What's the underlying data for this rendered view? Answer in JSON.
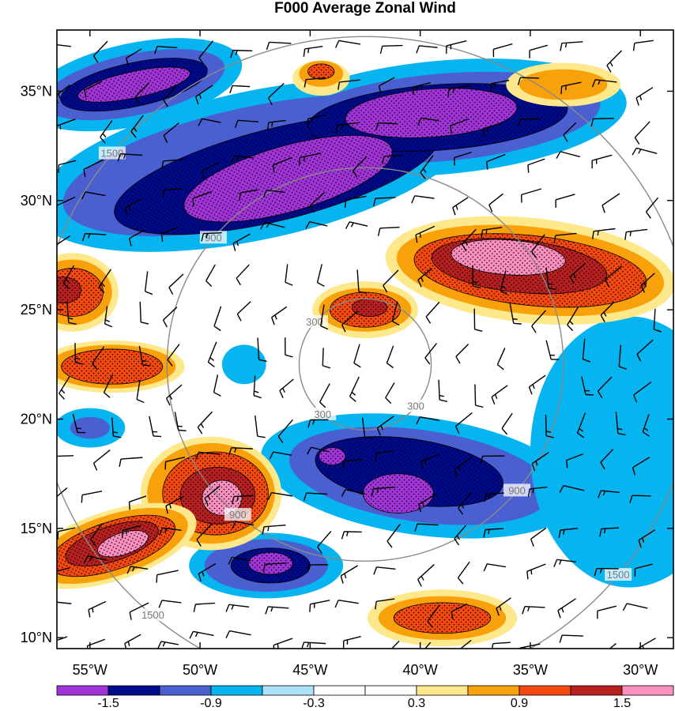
{
  "chart_data": {
    "type": "heatmap",
    "title": "F000 Average Zonal Wind",
    "x_ticks": [
      {
        "value": -55,
        "label": "55°W"
      },
      {
        "value": -50,
        "label": "50°W"
      },
      {
        "value": -45,
        "label": "45°W"
      },
      {
        "value": -40,
        "label": "40°W"
      },
      {
        "value": -35,
        "label": "35°W"
      },
      {
        "value": -30,
        "label": "30°W"
      }
    ],
    "y_ticks": [
      {
        "value": 10,
        "label": "10°N"
      },
      {
        "value": 15,
        "label": "15°N"
      },
      {
        "value": 20,
        "label": "20°N"
      },
      {
        "value": 25,
        "label": "25°N"
      },
      {
        "value": 30,
        "label": "30°N"
      },
      {
        "value": 35,
        "label": "35°N"
      }
    ],
    "xlim": [
      -56.5,
      -28.5
    ],
    "ylim": [
      9.5,
      37.8
    ],
    "colorbar": {
      "levels": [
        "-1.5",
        "-0.9",
        "-0.3",
        "0.3",
        "0.9",
        "1.5"
      ],
      "colors": [
        "#a034d8",
        "#000a8c",
        "#4a5fd0",
        "#06b4f0",
        "#aee2f8",
        "#ffffff",
        "#ffffff",
        "#fde98c",
        "#f8a10a",
        "#f64910",
        "#b82020",
        "#fb8fbf"
      ]
    },
    "range_circles": [
      {
        "radius_label": "300",
        "radius_deg": 3.0
      },
      {
        "radius_label": "900",
        "radius_deg": 9.0
      },
      {
        "radius_label": "1500",
        "radius_deg": 15.0
      }
    ],
    "center": {
      "lon": -42.5,
      "lat": 22.5
    },
    "regions": [
      {
        "level": -1,
        "cx": -47.5,
        "cy": 31.6,
        "rx": 10.2,
        "ry": 3.4,
        "rot": 12
      },
      {
        "level": -1,
        "cx": -39.0,
        "cy": 33.8,
        "rx": 8.4,
        "ry": 2.6,
        "rot": 5
      },
      {
        "level": -1,
        "cx": -53.0,
        "cy": 35.3,
        "rx": 5.0,
        "ry": 1.9,
        "rot": 12
      },
      {
        "level": -2,
        "cx": -47.5,
        "cy": 31.6,
        "rx": 8.9,
        "ry": 2.7,
        "rot": 12
      },
      {
        "level": -2,
        "cx": -39.0,
        "cy": 33.8,
        "rx": 7.2,
        "ry": 2.0,
        "rot": 5
      },
      {
        "level": -2,
        "cx": -53.0,
        "cy": 35.3,
        "rx": 4.2,
        "ry": 1.4,
        "rot": 12
      },
      {
        "level": -3,
        "cx": -46.5,
        "cy": 31.2,
        "rx": 7.6,
        "ry": 2.1,
        "rot": 14
      },
      {
        "level": -3,
        "cx": -39.2,
        "cy": 33.8,
        "rx": 5.9,
        "ry": 1.5,
        "rot": 4
      },
      {
        "level": -3,
        "cx": -53.0,
        "cy": 35.3,
        "rx": 3.4,
        "ry": 1.0,
        "rot": 12
      },
      {
        "level": -4,
        "cx": -46.0,
        "cy": 31.0,
        "rx": 4.9,
        "ry": 1.5,
        "rot": 16
      },
      {
        "level": -4,
        "cx": -39.5,
        "cy": 34.0,
        "rx": 3.9,
        "ry": 1.1,
        "rot": 4
      },
      {
        "level": -4,
        "cx": -53.0,
        "cy": 35.3,
        "rx": 2.6,
        "ry": 0.6,
        "rot": 12
      },
      {
        "level": -1,
        "cx": -40.0,
        "cy": 17.4,
        "rx": 7.3,
        "ry": 2.7,
        "rot": -8
      },
      {
        "level": -2,
        "cx": -40.0,
        "cy": 17.4,
        "rx": 6.0,
        "ry": 2.1,
        "rot": -8
      },
      {
        "level": -3,
        "cx": -40.5,
        "cy": 17.6,
        "rx": 4.3,
        "ry": 1.5,
        "rot": -8
      },
      {
        "level": -4,
        "cx": -41.0,
        "cy": 16.6,
        "rx": 1.6,
        "ry": 0.9,
        "rot": 0
      },
      {
        "level": -4,
        "cx": -44.0,
        "cy": 18.3,
        "rx": 0.6,
        "ry": 0.4,
        "rot": 0
      },
      {
        "level": -1,
        "cx": -47.0,
        "cy": 13.3,
        "rx": 3.5,
        "ry": 1.5,
        "rot": 0
      },
      {
        "level": -2,
        "cx": -47.0,
        "cy": 13.3,
        "rx": 2.8,
        "ry": 1.2,
        "rot": 0
      },
      {
        "level": -3,
        "cx": -46.8,
        "cy": 13.3,
        "rx": 1.8,
        "ry": 0.8,
        "rot": 0
      },
      {
        "level": -4,
        "cx": -46.8,
        "cy": 13.4,
        "rx": 1.0,
        "ry": 0.5,
        "rot": 0
      },
      {
        "level": -1,
        "cx": -30.5,
        "cy": 18.5,
        "rx": 4.5,
        "ry": 6.2,
        "rot": 0
      },
      {
        "level": -1,
        "cx": -48.0,
        "cy": 22.5,
        "rx": 1.0,
        "ry": 0.9,
        "rot": 0
      },
      {
        "level": -1,
        "cx": -55.0,
        "cy": 19.6,
        "rx": 1.6,
        "ry": 0.9,
        "rot": 0
      },
      {
        "level": -2,
        "cx": -55.0,
        "cy": 19.6,
        "rx": 0.9,
        "ry": 0.5,
        "rot": 0
      },
      {
        "level": 1,
        "cx": -35.0,
        "cy": 26.8,
        "rx": 6.6,
        "ry": 2.4,
        "rot": -6
      },
      {
        "level": 2,
        "cx": -35.0,
        "cy": 26.8,
        "rx": 6.1,
        "ry": 2.0,
        "rot": -6
      },
      {
        "level": 3,
        "cx": -35.0,
        "cy": 26.8,
        "rx": 5.3,
        "ry": 1.6,
        "rot": -6
      },
      {
        "level": 4,
        "cx": -35.5,
        "cy": 27.0,
        "rx": 4.0,
        "ry": 1.2,
        "rot": -6
      },
      {
        "level": 5,
        "cx": -36.0,
        "cy": 27.4,
        "rx": 2.6,
        "ry": 0.8,
        "rot": -4
      },
      {
        "level": 1,
        "cx": -42.5,
        "cy": 25.0,
        "rx": 2.4,
        "ry": 1.3,
        "rot": 0
      },
      {
        "level": 2,
        "cx": -42.5,
        "cy": 25.0,
        "rx": 2.1,
        "ry": 1.0,
        "rot": 0
      },
      {
        "level": 3,
        "cx": -42.5,
        "cy": 25.0,
        "rx": 1.6,
        "ry": 0.8,
        "rot": 0
      },
      {
        "level": 4,
        "cx": -42.3,
        "cy": 25.1,
        "rx": 0.8,
        "ry": 0.4,
        "rot": 0
      },
      {
        "level": 1,
        "cx": -54.0,
        "cy": 22.4,
        "rx": 3.3,
        "ry": 1.2,
        "rot": 0
      },
      {
        "level": 2,
        "cx": -54.0,
        "cy": 22.4,
        "rx": 2.9,
        "ry": 1.0,
        "rot": 0
      },
      {
        "level": 3,
        "cx": -54.0,
        "cy": 22.4,
        "rx": 2.3,
        "ry": 0.8,
        "rot": 0
      },
      {
        "level": 1,
        "cx": -55.8,
        "cy": 25.8,
        "rx": 2.1,
        "ry": 1.8,
        "rot": 0
      },
      {
        "level": 2,
        "cx": -55.8,
        "cy": 25.8,
        "rx": 1.8,
        "ry": 1.5,
        "rot": 0
      },
      {
        "level": 3,
        "cx": -55.8,
        "cy": 25.8,
        "rx": 1.4,
        "ry": 1.1,
        "rot": 0
      },
      {
        "level": 4,
        "cx": -56.2,
        "cy": 25.9,
        "rx": 0.8,
        "ry": 0.6,
        "rot": 0
      },
      {
        "level": 1,
        "cx": -49.5,
        "cy": 16.6,
        "rx": 3.2,
        "ry": 2.6,
        "rot": 0
      },
      {
        "level": 2,
        "cx": -49.5,
        "cy": 16.6,
        "rx": 2.9,
        "ry": 2.3,
        "rot": 0
      },
      {
        "level": 3,
        "cx": -49.3,
        "cy": 16.6,
        "rx": 2.4,
        "ry": 1.9,
        "rot": 0
      },
      {
        "level": 4,
        "cx": -49.2,
        "cy": 16.5,
        "rx": 1.7,
        "ry": 1.3,
        "rot": 0
      },
      {
        "level": 5,
        "cx": -49.0,
        "cy": 16.4,
        "rx": 0.9,
        "ry": 0.8,
        "rot": 0
      },
      {
        "level": 1,
        "cx": -54.0,
        "cy": 14.2,
        "rx": 4.0,
        "ry": 1.6,
        "rot": 18
      },
      {
        "level": 2,
        "cx": -54.0,
        "cy": 14.2,
        "rx": 3.6,
        "ry": 1.4,
        "rot": 18
      },
      {
        "level": 3,
        "cx": -54.0,
        "cy": 14.2,
        "rx": 3.0,
        "ry": 1.1,
        "rot": 18
      },
      {
        "level": 4,
        "cx": -54.0,
        "cy": 14.3,
        "rx": 2.2,
        "ry": 0.8,
        "rot": 18
      },
      {
        "level": 5,
        "cx": -53.5,
        "cy": 14.3,
        "rx": 1.2,
        "ry": 0.5,
        "rot": 18
      },
      {
        "level": 1,
        "cx": -39.0,
        "cy": 10.9,
        "rx": 3.4,
        "ry": 1.3,
        "rot": 0
      },
      {
        "level": 2,
        "cx": -39.0,
        "cy": 10.9,
        "rx": 2.9,
        "ry": 1.0,
        "rot": 0
      },
      {
        "level": 3,
        "cx": -39.0,
        "cy": 10.9,
        "rx": 2.2,
        "ry": 0.7,
        "rot": 0
      },
      {
        "level": 1,
        "cx": -33.5,
        "cy": 35.3,
        "rx": 2.6,
        "ry": 1.0,
        "rot": 0
      },
      {
        "level": 2,
        "cx": -33.5,
        "cy": 35.3,
        "rx": 2.0,
        "ry": 0.7,
        "rot": 0
      },
      {
        "level": 1,
        "cx": -44.5,
        "cy": 35.6,
        "rx": 1.3,
        "ry": 0.8,
        "rot": 0
      },
      {
        "level": 2,
        "cx": -44.5,
        "cy": 35.8,
        "rx": 1.0,
        "ry": 0.6,
        "rot": 0
      },
      {
        "level": 3,
        "cx": -44.5,
        "cy": 35.9,
        "rx": 0.6,
        "ry": 0.35,
        "rot": 0
      }
    ]
  }
}
